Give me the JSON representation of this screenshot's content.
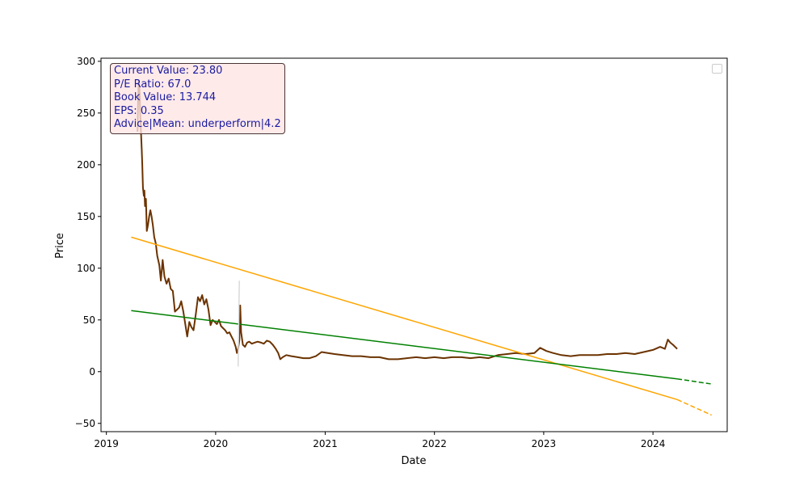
{
  "chart_data": {
    "type": "line",
    "title": "",
    "xlabel": "Date",
    "ylabel": "Price",
    "xlim": [
      "2018-12-14",
      "2024-09-05"
    ],
    "ylim": [
      -58,
      303
    ],
    "x_ticks": [
      "2019-01-01",
      "2020-01-01",
      "2021-01-01",
      "2022-01-01",
      "2023-01-01",
      "2024-01-01"
    ],
    "x_tick_labels": [
      "2019",
      "2020",
      "2021",
      "2022",
      "2023",
      "2024"
    ],
    "y_ticks": [
      -50,
      0,
      50,
      100,
      150,
      200,
      250,
      300
    ],
    "y_tick_labels": [
      "−50",
      "0",
      "50",
      "100",
      "150",
      "200",
      "250",
      "300"
    ],
    "grid": false,
    "legend": {
      "position": "top-right",
      "entries": []
    },
    "series": [
      {
        "color": "#6b3300",
        "style": "solid",
        "points": [
          [
            "2019-04-15",
            232
          ],
          [
            "2019-04-17",
            262
          ],
          [
            "2019-04-19",
            281
          ],
          [
            "2019-04-22",
            270
          ],
          [
            "2019-04-24",
            250
          ],
          [
            "2019-04-26",
            235
          ],
          [
            "2019-04-29",
            215
          ],
          [
            "2019-05-01",
            200
          ],
          [
            "2019-05-03",
            178
          ],
          [
            "2019-05-06",
            170
          ],
          [
            "2019-05-08",
            175
          ],
          [
            "2019-05-10",
            160
          ],
          [
            "2019-05-13",
            167
          ],
          [
            "2019-05-16",
            136
          ],
          [
            "2019-05-20",
            142
          ],
          [
            "2019-05-24",
            150
          ],
          [
            "2019-05-28",
            156
          ],
          [
            "2019-06-01",
            150
          ],
          [
            "2019-06-05",
            142
          ],
          [
            "2019-06-10",
            130
          ],
          [
            "2019-06-15",
            124
          ],
          [
            "2019-06-20",
            112
          ],
          [
            "2019-06-27",
            103
          ],
          [
            "2019-07-02",
            88
          ],
          [
            "2019-07-08",
            108
          ],
          [
            "2019-07-14",
            92
          ],
          [
            "2019-07-21",
            85
          ],
          [
            "2019-07-28",
            90
          ],
          [
            "2019-08-04",
            80
          ],
          [
            "2019-08-11",
            78
          ],
          [
            "2019-08-18",
            58
          ],
          [
            "2019-08-25",
            60
          ],
          [
            "2019-09-01",
            62
          ],
          [
            "2019-09-08",
            68
          ],
          [
            "2019-09-15",
            58
          ],
          [
            "2019-09-22",
            45
          ],
          [
            "2019-09-28",
            34
          ],
          [
            "2019-10-05",
            48
          ],
          [
            "2019-10-12",
            43
          ],
          [
            "2019-10-19",
            40
          ],
          [
            "2019-10-27",
            56
          ],
          [
            "2019-11-03",
            72
          ],
          [
            "2019-11-10",
            68
          ],
          [
            "2019-11-17",
            74
          ],
          [
            "2019-11-24",
            65
          ],
          [
            "2019-12-01",
            70
          ],
          [
            "2019-12-08",
            60
          ],
          [
            "2019-12-15",
            45
          ],
          [
            "2019-12-22",
            50
          ],
          [
            "2019-12-29",
            48
          ],
          [
            "2020-01-05",
            46
          ],
          [
            "2020-01-12",
            50
          ],
          [
            "2020-01-19",
            44
          ],
          [
            "2020-01-26",
            42
          ],
          [
            "2020-02-02",
            40
          ],
          [
            "2020-02-09",
            37
          ],
          [
            "2020-02-16",
            38
          ],
          [
            "2020-02-23",
            34
          ],
          [
            "2020-03-01",
            30
          ],
          [
            "2020-03-08",
            24
          ],
          [
            "2020-03-12",
            18
          ],
          [
            "2020-03-16",
            22
          ],
          [
            "2020-03-20",
            30
          ],
          [
            "2020-03-23",
            64
          ],
          [
            "2020-03-26",
            38
          ],
          [
            "2020-04-01",
            26
          ],
          [
            "2020-04-08",
            24
          ],
          [
            "2020-04-15",
            28
          ],
          [
            "2020-04-22",
            29
          ],
          [
            "2020-05-01",
            27
          ],
          [
            "2020-05-10",
            28
          ],
          [
            "2020-05-20",
            29
          ],
          [
            "2020-06-01",
            28
          ],
          [
            "2020-06-10",
            27
          ],
          [
            "2020-06-20",
            30
          ],
          [
            "2020-06-30",
            29
          ],
          [
            "2020-07-10",
            26
          ],
          [
            "2020-07-20",
            22
          ],
          [
            "2020-07-28",
            18
          ],
          [
            "2020-08-04",
            12
          ],
          [
            "2020-08-12",
            14
          ],
          [
            "2020-08-24",
            16
          ],
          [
            "2020-09-10",
            15
          ],
          [
            "2020-10-01",
            14
          ],
          [
            "2020-10-20",
            13
          ],
          [
            "2020-11-10",
            13
          ],
          [
            "2020-12-01",
            15
          ],
          [
            "2020-12-20",
            19
          ],
          [
            "2021-01-10",
            18
          ],
          [
            "2021-02-01",
            17
          ],
          [
            "2021-03-01",
            16
          ],
          [
            "2021-04-01",
            15
          ],
          [
            "2021-05-01",
            15
          ],
          [
            "2021-06-01",
            14
          ],
          [
            "2021-07-01",
            14
          ],
          [
            "2021-08-01",
            12
          ],
          [
            "2021-09-01",
            12
          ],
          [
            "2021-10-01",
            13
          ],
          [
            "2021-11-01",
            14
          ],
          [
            "2021-12-01",
            13
          ],
          [
            "2022-01-01",
            14
          ],
          [
            "2022-02-01",
            13
          ],
          [
            "2022-03-01",
            14
          ],
          [
            "2022-04-01",
            14
          ],
          [
            "2022-05-01",
            13
          ],
          [
            "2022-06-01",
            14
          ],
          [
            "2022-07-01",
            13
          ],
          [
            "2022-08-01",
            16
          ],
          [
            "2022-09-01",
            17
          ],
          [
            "2022-10-01",
            18
          ],
          [
            "2022-11-01",
            17
          ],
          [
            "2022-12-01",
            18
          ],
          [
            "2022-12-20",
            23
          ],
          [
            "2023-01-10",
            20
          ],
          [
            "2023-02-01",
            18
          ],
          [
            "2023-03-01",
            16
          ],
          [
            "2023-04-01",
            15
          ],
          [
            "2023-05-01",
            16
          ],
          [
            "2023-06-01",
            16
          ],
          [
            "2023-07-01",
            16
          ],
          [
            "2023-08-01",
            17
          ],
          [
            "2023-09-01",
            17
          ],
          [
            "2023-10-01",
            18
          ],
          [
            "2023-11-01",
            17
          ],
          [
            "2023-12-01",
            19
          ],
          [
            "2024-01-01",
            21
          ],
          [
            "2024-01-25",
            24
          ],
          [
            "2024-02-10",
            22
          ],
          [
            "2024-02-20",
            31
          ],
          [
            "2024-02-28",
            28
          ],
          [
            "2024-03-08",
            26
          ],
          [
            "2024-03-15",
            24
          ],
          [
            "2024-03-22",
            22
          ]
        ]
      },
      {
        "color": "#ffa500",
        "style": "solid",
        "points": [
          [
            "2019-03-25",
            130
          ],
          [
            "2024-03-22",
            -27
          ]
        ]
      },
      {
        "color": "#ffa500",
        "style": "dashed",
        "points": [
          [
            "2024-03-22",
            -27
          ],
          [
            "2024-07-15",
            -42
          ]
        ]
      },
      {
        "color": "#008000",
        "style": "solid",
        "points": [
          [
            "2019-03-25",
            59
          ],
          [
            "2024-03-22",
            -7
          ]
        ]
      },
      {
        "color": "#008000",
        "style": "dashed",
        "points": [
          [
            "2024-03-22",
            -7
          ],
          [
            "2024-07-15",
            -12
          ]
        ]
      },
      {
        "color": "#d9d9d9",
        "style": "solid",
        "points": [
          [
            "2020-03-16",
            5
          ],
          [
            "2020-03-20",
            88
          ]
        ]
      }
    ],
    "annotation": {
      "lines": [
        "Current Value: 23.80",
        "P/E Ratio: 67.0",
        "Book Value: 13.744",
        "EPS: 0.35",
        "Advice|Mean: underperform|4.2"
      ]
    }
  }
}
